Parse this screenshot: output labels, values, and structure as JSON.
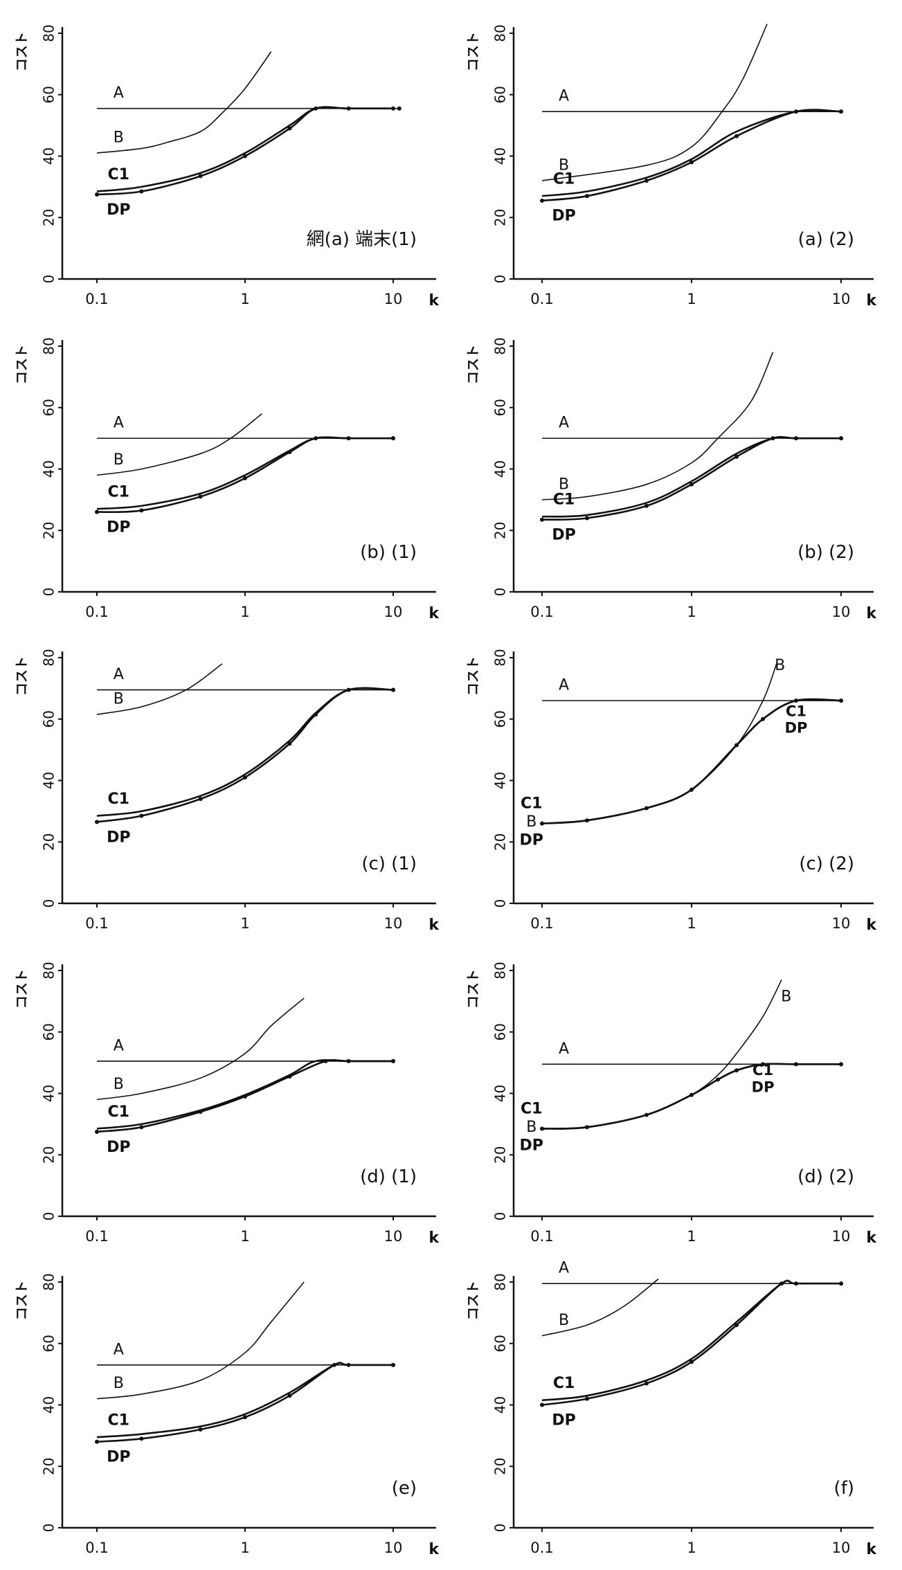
{
  "chart_data": [
    {
      "type": "line",
      "title": "網(a) 端末(1)",
      "xlabel": "k",
      "ylabel": "コスト",
      "xscale": "log",
      "xlim": [
        0.07,
        13
      ],
      "ylim": [
        0,
        80
      ],
      "xticks": [
        "0.1",
        "1",
        "10"
      ],
      "yticks": [
        "0",
        "20",
        "40",
        "60",
        "80"
      ],
      "series": [
        {
          "name": "A",
          "x": [
            0.1,
            11
          ],
          "y": [
            55.5,
            55.5
          ]
        },
        {
          "name": "B",
          "x": [
            0.1,
            0.2,
            0.3,
            0.5,
            0.7,
            1,
            1.5
          ],
          "y": [
            41,
            42.5,
            44.5,
            48,
            54,
            62,
            74
          ]
        },
        {
          "name": "C1",
          "x": [
            0.1,
            0.2,
            0.5,
            1,
            2,
            3,
            5,
            10
          ],
          "y": [
            28.5,
            30,
            34.5,
            41,
            50,
            55.5,
            55.5,
            55.5
          ]
        },
        {
          "name": "DP",
          "x": [
            0.1,
            0.2,
            0.5,
            1,
            2,
            3,
            5,
            10
          ],
          "y": [
            27.5,
            28.5,
            33.5,
            40,
            49,
            55.5,
            55.5,
            55.5
          ]
        }
      ]
    },
    {
      "type": "line",
      "title": "(a) (2)",
      "xlabel": "k",
      "ylabel": "コスト",
      "xscale": "log",
      "xlim": [
        0.07,
        13
      ],
      "ylim": [
        0,
        80
      ],
      "xticks": [
        "0.1",
        "1",
        "10"
      ],
      "yticks": [
        "0",
        "20",
        "40",
        "60",
        "80"
      ],
      "series": [
        {
          "name": "A",
          "x": [
            0.1,
            10
          ],
          "y": [
            54.5,
            54.5
          ]
        },
        {
          "name": "B",
          "x": [
            0.1,
            0.5,
            1,
            1.6,
            2.2,
            3.2
          ],
          "y": [
            32,
            37,
            43,
            54.5,
            65,
            83
          ]
        },
        {
          "name": "C1",
          "x": [
            0.1,
            0.2,
            0.5,
            1,
            2,
            5,
            10
          ],
          "y": [
            27,
            28.5,
            33,
            39,
            48,
            54.5,
            54.5
          ]
        },
        {
          "name": "DP",
          "x": [
            0.1,
            0.2,
            0.5,
            1,
            2,
            5,
            10
          ],
          "y": [
            25.5,
            27,
            32,
            38,
            46.5,
            54.5,
            54.5
          ]
        }
      ]
    },
    {
      "type": "line",
      "title": "(b) (1)",
      "xlabel": "k",
      "ylabel": "コスト",
      "xscale": "log",
      "xlim": [
        0.07,
        13
      ],
      "ylim": [
        0,
        80
      ],
      "xticks": [
        "0.1",
        "1",
        "10"
      ],
      "yticks": [
        "0",
        "20",
        "40",
        "60",
        "80"
      ],
      "series": [
        {
          "name": "A",
          "x": [
            0.1,
            10
          ],
          "y": [
            50,
            50
          ]
        },
        {
          "name": "B",
          "x": [
            0.1,
            0.2,
            0.5,
            0.8,
            1.3
          ],
          "y": [
            38,
            40,
            45,
            50,
            58
          ]
        },
        {
          "name": "C1",
          "x": [
            0.1,
            0.2,
            0.5,
            1,
            2,
            3,
            5,
            10
          ],
          "y": [
            27,
            28,
            32,
            38,
            46,
            50,
            50,
            50
          ]
        },
        {
          "name": "DP",
          "x": [
            0.1,
            0.2,
            0.5,
            1,
            2,
            3,
            5,
            10
          ],
          "y": [
            26,
            26.5,
            31,
            37,
            45.5,
            50,
            50,
            50
          ]
        }
      ]
    },
    {
      "type": "line",
      "title": "(b) (2)",
      "xlabel": "k",
      "ylabel": "コスト",
      "xscale": "log",
      "xlim": [
        0.07,
        13
      ],
      "ylim": [
        0,
        80
      ],
      "xticks": [
        "0.1",
        "1",
        "10"
      ],
      "yticks": [
        "0",
        "20",
        "40",
        "60",
        "80"
      ],
      "series": [
        {
          "name": "A",
          "x": [
            0.1,
            10
          ],
          "y": [
            50,
            50
          ]
        },
        {
          "name": "B",
          "x": [
            0.1,
            0.2,
            0.5,
            1,
            1.5,
            2.5,
            3.5
          ],
          "y": [
            30,
            31,
            35,
            42,
            50,
            62,
            78
          ]
        },
        {
          "name": "C1",
          "x": [
            0.1,
            0.2,
            0.5,
            1,
            2,
            3.5,
            5,
            10
          ],
          "y": [
            24.5,
            25,
            29,
            36,
            45,
            50,
            50,
            50
          ]
        },
        {
          "name": "DP",
          "x": [
            0.1,
            0.2,
            0.5,
            1,
            2,
            3.5,
            5,
            10
          ],
          "y": [
            23.5,
            24,
            28,
            35,
            44,
            50,
            50,
            50
          ]
        }
      ]
    },
    {
      "type": "line",
      "title": "(c) (1)",
      "xlabel": "k",
      "ylabel": "コスト",
      "xscale": "log",
      "xlim": [
        0.07,
        13
      ],
      "ylim": [
        0,
        80
      ],
      "xticks": [
        "0.1",
        "1",
        "10"
      ],
      "yticks": [
        "0",
        "20",
        "40",
        "60",
        "80"
      ],
      "series": [
        {
          "name": "A",
          "x": [
            0.1,
            10
          ],
          "y": [
            69.5,
            69.5
          ]
        },
        {
          "name": "B",
          "x": [
            0.1,
            0.2,
            0.4,
            0.7
          ],
          "y": [
            61.5,
            64,
            69.5,
            78
          ]
        },
        {
          "name": "C1",
          "x": [
            0.1,
            0.2,
            0.5,
            1,
            2,
            3,
            5,
            10
          ],
          "y": [
            28.5,
            30,
            35,
            42,
            53,
            62,
            69.5,
            69.5
          ]
        },
        {
          "name": "DP",
          "x": [
            0.1,
            0.2,
            0.5,
            1,
            2,
            3,
            5,
            10
          ],
          "y": [
            26.5,
            28.5,
            34,
            41,
            52,
            61.5,
            69.5,
            69.5
          ]
        }
      ]
    },
    {
      "type": "line",
      "title": "(c) (2)",
      "xlabel": "k",
      "ylabel": "コスト",
      "xscale": "log",
      "xlim": [
        0.07,
        13
      ],
      "ylim": [
        0,
        80
      ],
      "xticks": [
        "0.1",
        "1",
        "10"
      ],
      "yticks": [
        "0",
        "20",
        "40",
        "60",
        "80"
      ],
      "series": [
        {
          "name": "A",
          "x": [
            0.1,
            10
          ],
          "y": [
            66,
            66
          ]
        },
        {
          "name": "B",
          "x": [
            0.1,
            0.2,
            0.5,
            1,
            2,
            3,
            3.7
          ],
          "y": [
            26,
            27,
            31,
            37,
            51.5,
            66,
            78
          ]
        },
        {
          "name": "C1",
          "x": [
            0.1,
            0.2,
            0.5,
            1,
            2,
            3,
            5,
            10
          ],
          "y": [
            26,
            27,
            31,
            37,
            51.5,
            60,
            66,
            66
          ]
        },
        {
          "name": "DP",
          "x": [
            0.1,
            0.2,
            0.5,
            1,
            2,
            3,
            5,
            10
          ],
          "y": [
            26,
            27,
            31,
            37,
            51.5,
            60,
            66,
            66
          ]
        }
      ]
    },
    {
      "type": "line",
      "title": "(d) (1)",
      "xlabel": "k",
      "ylabel": "コスト",
      "xscale": "log",
      "xlim": [
        0.07,
        13
      ],
      "ylim": [
        0,
        80
      ],
      "xticks": [
        "0.1",
        "1",
        "10"
      ],
      "yticks": [
        "0",
        "20",
        "40",
        "60",
        "80"
      ],
      "series": [
        {
          "name": "A",
          "x": [
            0.1,
            10
          ],
          "y": [
            50.5,
            50.5
          ]
        },
        {
          "name": "B",
          "x": [
            0.1,
            0.2,
            0.5,
            1,
            1.5,
            2.5
          ],
          "y": [
            38,
            40,
            45,
            53,
            62,
            71
          ]
        },
        {
          "name": "C1",
          "x": [
            0.1,
            0.2,
            0.5,
            1,
            2,
            3,
            5,
            10
          ],
          "y": [
            28.5,
            30,
            34.5,
            39.5,
            46,
            50.5,
            50.5,
            50.5
          ]
        },
        {
          "name": "DP",
          "x": [
            0.1,
            0.2,
            0.5,
            1,
            2,
            3.5,
            5,
            10
          ],
          "y": [
            27.5,
            29,
            34,
            39,
            45.5,
            50.5,
            50.5,
            50.5
          ]
        }
      ]
    },
    {
      "type": "line",
      "title": "(d) (2)",
      "xlabel": "k",
      "ylabel": "コスト",
      "xscale": "log",
      "xlim": [
        0.07,
        13
      ],
      "ylim": [
        0,
        80
      ],
      "xticks": [
        "0.1",
        "1",
        "10"
      ],
      "yticks": [
        "0",
        "20",
        "40",
        "60",
        "80"
      ],
      "series": [
        {
          "name": "A",
          "x": [
            0.1,
            10
          ],
          "y": [
            49.5,
            49.5
          ]
        },
        {
          "name": "B",
          "x": [
            0.1,
            0.2,
            0.5,
            1,
            1.5,
            2,
            3,
            4
          ],
          "y": [
            28.5,
            29,
            33,
            39.5,
            46,
            53,
            65,
            77
          ]
        },
        {
          "name": "C1",
          "x": [
            0.1,
            0.2,
            0.5,
            1,
            1.5,
            2,
            3,
            5,
            10
          ],
          "y": [
            28.5,
            29,
            33,
            39.5,
            44.5,
            47.5,
            49.5,
            49.5,
            49.5
          ]
        },
        {
          "name": "DP",
          "x": [
            0.1,
            0.2,
            0.5,
            1,
            1.5,
            2,
            3,
            5,
            10
          ],
          "y": [
            28.5,
            29,
            33,
            39.5,
            44.5,
            47.5,
            49.5,
            49.5,
            49.5
          ]
        }
      ]
    },
    {
      "type": "line",
      "title": "(e)",
      "xlabel": "k",
      "ylabel": "コスト",
      "xscale": "log",
      "xlim": [
        0.07,
        13
      ],
      "ylim": [
        0,
        80
      ],
      "xticks": [
        "0.1",
        "1",
        "10"
      ],
      "yticks": [
        "0",
        "20",
        "40",
        "60",
        "80"
      ],
      "series": [
        {
          "name": "A",
          "x": [
            0.1,
            10
          ],
          "y": [
            53,
            53
          ]
        },
        {
          "name": "B",
          "x": [
            0.1,
            0.2,
            0.5,
            1,
            1.5,
            2.5
          ],
          "y": [
            42,
            43.5,
            48,
            57,
            67,
            80
          ]
        },
        {
          "name": "C1",
          "x": [
            0.1,
            0.2,
            0.5,
            1,
            2,
            4,
            5,
            10
          ],
          "y": [
            29.5,
            30.5,
            33,
            37,
            44,
            53,
            53,
            53
          ]
        },
        {
          "name": "DP",
          "x": [
            0.1,
            0.2,
            0.5,
            1,
            2,
            4,
            5,
            10
          ],
          "y": [
            28,
            29,
            32,
            36,
            43,
            53,
            53,
            53
          ]
        }
      ]
    },
    {
      "type": "line",
      "title": "(f)",
      "xlabel": "k",
      "ylabel": "コスト",
      "xscale": "log",
      "xlim": [
        0.07,
        13
      ],
      "ylim": [
        0,
        80
      ],
      "xticks": [
        "0.1",
        "1",
        "10"
      ],
      "yticks": [
        "0",
        "20",
        "40",
        "60",
        "80"
      ],
      "series": [
        {
          "name": "A",
          "x": [
            0.1,
            10
          ],
          "y": [
            79.5,
            79.5
          ]
        },
        {
          "name": "B",
          "x": [
            0.1,
            0.2,
            0.35,
            0.6
          ],
          "y": [
            62.5,
            66,
            72,
            81
          ]
        },
        {
          "name": "C1",
          "x": [
            0.1,
            0.2,
            0.5,
            1,
            2,
            4,
            5,
            10
          ],
          "y": [
            41.5,
            43,
            48,
            55,
            67,
            79.5,
            79.5,
            79.5
          ]
        },
        {
          "name": "DP",
          "x": [
            0.1,
            0.2,
            0.5,
            1,
            2,
            4,
            5,
            10
          ],
          "y": [
            40,
            42,
            47,
            54,
            66,
            79.5,
            79.5,
            79.5
          ]
        }
      ]
    }
  ]
}
